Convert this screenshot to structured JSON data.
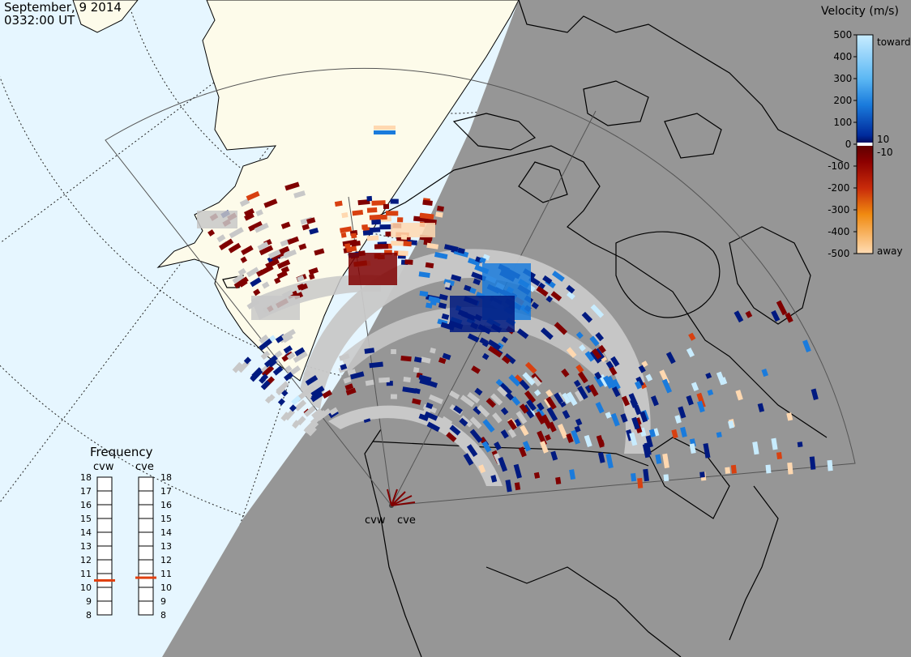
{
  "header": {
    "date": "September, 9 2014",
    "time": "0332:00 UT"
  },
  "colorbar": {
    "title": "Velocity (m/s)",
    "ticks": [
      "500",
      "400",
      "300",
      "200",
      "100",
      "0",
      "-100",
      "-200",
      "-300",
      "-400",
      "-500"
    ],
    "toward_label": "toward",
    "away_label": "away",
    "pos_threshold": "10",
    "neg_threshold": "-10",
    "colors": {
      "toward_light": "#c8ecff",
      "toward_mid": "#1a7bdc",
      "toward_dark": "#001a80",
      "away_dark": "#800000",
      "away_mid": "#d84010",
      "away_light": "#ffd8b0",
      "ground_scatter": "#c8c8c8"
    }
  },
  "frequency_panel": {
    "title": "Frequency",
    "left_station": "cvw",
    "right_station": "cve",
    "ticks": [
      "18",
      "17",
      "16",
      "15",
      "14",
      "13",
      "12",
      "11",
      "10",
      "9",
      "8"
    ],
    "cvw_mhz": 10.5,
    "cve_mhz": 10.7,
    "indicator_color": "#e04010"
  },
  "stations": {
    "west": "cvw",
    "east": "cve"
  },
  "map": {
    "ocean_color": "#e6f6ff",
    "land_day_color": "#fdfbea",
    "night_color": "#969696"
  }
}
